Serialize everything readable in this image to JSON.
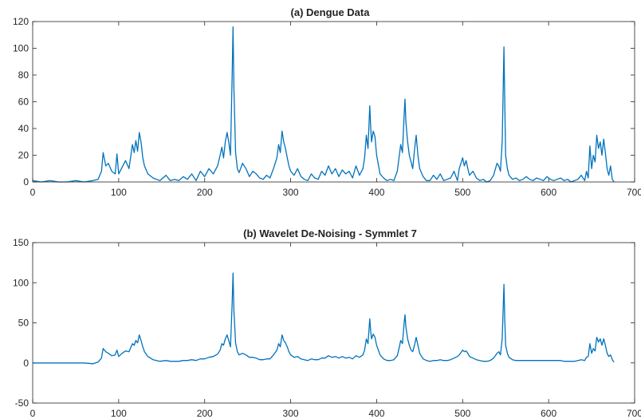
{
  "chart_data": [
    {
      "type": "line",
      "title": "(a) Dengue Data",
      "xlabel": "",
      "ylabel": "",
      "xlim": [
        0,
        700
      ],
      "ylim": [
        0,
        120
      ],
      "xticks": [
        0,
        100,
        200,
        300,
        400,
        500,
        600,
        700
      ],
      "yticks": [
        0,
        20,
        40,
        60,
        80,
        100,
        120
      ],
      "grid": false,
      "color": "#0072BD",
      "series": [
        {
          "x": [
            0,
            10,
            20,
            30,
            40,
            50,
            60,
            70,
            76,
            80,
            82,
            85,
            88,
            92,
            96,
            98,
            100,
            104,
            108,
            112,
            116,
            118,
            120,
            122,
            124,
            126,
            128,
            130,
            134,
            140,
            148,
            155,
            160,
            165,
            170,
            175,
            180,
            185,
            190,
            195,
            200,
            205,
            210,
            215,
            218,
            220,
            222,
            224,
            226,
            228,
            230,
            232,
            233,
            234,
            236,
            238,
            240,
            244,
            248,
            252,
            256,
            260,
            264,
            268,
            272,
            276,
            280,
            284,
            286,
            288,
            290,
            292,
            294,
            296,
            298,
            300,
            304,
            308,
            312,
            316,
            320,
            324,
            328,
            332,
            336,
            340,
            344,
            348,
            352,
            356,
            360,
            364,
            368,
            372,
            376,
            380,
            384,
            386,
            388,
            390,
            392,
            393,
            394,
            396,
            398,
            400,
            404,
            408,
            412,
            416,
            420,
            424,
            426,
            428,
            430,
            432,
            433,
            434,
            436,
            438,
            440,
            442,
            444,
            446,
            448,
            450,
            454,
            458,
            462,
            466,
            470,
            474,
            478,
            482,
            486,
            490,
            494,
            496,
            498,
            500,
            502,
            504,
            506,
            508,
            512,
            516,
            520,
            524,
            528,
            532,
            536,
            540,
            542,
            544,
            546,
            548,
            549,
            550,
            552,
            554,
            558,
            562,
            566,
            570,
            574,
            578,
            582,
            586,
            590,
            594,
            598,
            602,
            606,
            610,
            614,
            618,
            622,
            626,
            630,
            634,
            638,
            642,
            644,
            646,
            648,
            650,
            652,
            654,
            656,
            658,
            660,
            662,
            664,
            666,
            668,
            670,
            672,
            674,
            676
          ],
          "values": [
            1,
            0,
            1,
            0,
            0,
            1,
            0,
            1,
            2,
            8,
            22,
            12,
            14,
            8,
            6,
            21,
            6,
            11,
            16,
            10,
            28,
            22,
            31,
            23,
            37,
            30,
            18,
            12,
            6,
            3,
            1,
            5,
            1,
            2,
            1,
            4,
            2,
            6,
            1,
            8,
            4,
            10,
            6,
            12,
            20,
            26,
            18,
            30,
            37,
            30,
            20,
            80,
            116,
            70,
            22,
            10,
            7,
            14,
            10,
            4,
            8,
            6,
            3,
            2,
            5,
            3,
            10,
            18,
            28,
            22,
            38,
            30,
            25,
            18,
            12,
            8,
            5,
            10,
            4,
            2,
            1,
            6,
            3,
            2,
            8,
            5,
            12,
            6,
            10,
            4,
            9,
            6,
            8,
            3,
            12,
            5,
            10,
            18,
            35,
            25,
            57,
            42,
            30,
            38,
            34,
            20,
            6,
            3,
            1,
            2,
            1,
            8,
            18,
            28,
            22,
            50,
            62,
            45,
            30,
            20,
            15,
            10,
            24,
            35,
            20,
            10,
            4,
            1,
            1,
            5,
            2,
            6,
            1,
            2,
            3,
            8,
            1,
            10,
            14,
            18,
            12,
            16,
            10,
            5,
            8,
            3,
            1,
            2,
            0,
            1,
            5,
            14,
            12,
            8,
            30,
            101,
            60,
            20,
            10,
            5,
            2,
            3,
            1,
            2,
            4,
            2,
            1,
            3,
            2,
            1,
            4,
            2,
            1,
            2,
            3,
            1,
            2,
            0,
            1,
            2,
            5,
            1,
            8,
            3,
            27,
            10,
            20,
            15,
            35,
            25,
            30,
            20,
            32,
            22,
            10,
            5,
            12,
            2,
            0
          ]
        }
      ]
    },
    {
      "type": "line",
      "title": "(b) Wavelet De-Noising - Symmlet 7",
      "xlabel": "",
      "ylabel": "",
      "xlim": [
        0,
        700
      ],
      "ylim": [
        -50,
        150
      ],
      "xticks": [
        0,
        100,
        200,
        300,
        400,
        500,
        600,
        700
      ],
      "yticks": [
        -50,
        0,
        50,
        100,
        150
      ],
      "grid": false,
      "color": "#0072BD",
      "series": [
        {
          "x": [
            0,
            10,
            20,
            30,
            40,
            50,
            60,
            70,
            76,
            80,
            82,
            85,
            88,
            92,
            96,
            98,
            100,
            104,
            108,
            112,
            116,
            118,
            120,
            122,
            124,
            126,
            128,
            130,
            134,
            140,
            148,
            155,
            160,
            165,
            170,
            175,
            180,
            185,
            190,
            195,
            200,
            205,
            210,
            215,
            218,
            220,
            222,
            224,
            226,
            228,
            230,
            232,
            233,
            234,
            236,
            238,
            240,
            244,
            248,
            252,
            256,
            260,
            264,
            268,
            272,
            276,
            280,
            284,
            286,
            288,
            290,
            292,
            294,
            296,
            298,
            300,
            304,
            308,
            312,
            316,
            320,
            324,
            328,
            332,
            336,
            340,
            344,
            348,
            352,
            356,
            360,
            364,
            368,
            372,
            376,
            380,
            384,
            386,
            388,
            390,
            392,
            393,
            394,
            396,
            398,
            400,
            404,
            408,
            412,
            416,
            420,
            424,
            426,
            428,
            430,
            432,
            433,
            434,
            436,
            438,
            440,
            442,
            444,
            446,
            448,
            450,
            454,
            458,
            462,
            466,
            470,
            474,
            478,
            482,
            486,
            490,
            494,
            496,
            498,
            500,
            502,
            504,
            506,
            508,
            512,
            516,
            520,
            524,
            528,
            532,
            536,
            540,
            542,
            544,
            546,
            548,
            549,
            550,
            552,
            554,
            558,
            562,
            566,
            570,
            574,
            578,
            582,
            586,
            590,
            594,
            598,
            602,
            606,
            610,
            614,
            618,
            622,
            626,
            630,
            634,
            638,
            642,
            644,
            646,
            648,
            650,
            652,
            654,
            656,
            658,
            660,
            662,
            664,
            666,
            668,
            670,
            672,
            674,
            676
          ],
          "values": [
            0,
            0,
            0,
            0,
            0,
            0,
            0,
            -1,
            1,
            6,
            18,
            14,
            12,
            9,
            10,
            16,
            8,
            12,
            15,
            14,
            24,
            22,
            28,
            25,
            35,
            28,
            20,
            14,
            8,
            4,
            2,
            3,
            2,
            2,
            2,
            3,
            3,
            4,
            3,
            5,
            5,
            7,
            8,
            11,
            16,
            24,
            22,
            30,
            35,
            28,
            20,
            75,
            112,
            65,
            25,
            14,
            10,
            12,
            10,
            7,
            7,
            6,
            4,
            4,
            5,
            5,
            10,
            16,
            24,
            20,
            35,
            28,
            25,
            20,
            14,
            10,
            7,
            8,
            5,
            4,
            3,
            5,
            4,
            4,
            6,
            6,
            9,
            7,
            8,
            6,
            8,
            6,
            7,
            5,
            9,
            7,
            10,
            16,
            30,
            24,
            55,
            40,
            30,
            36,
            32,
            22,
            10,
            5,
            3,
            3,
            4,
            9,
            18,
            28,
            24,
            50,
            60,
            45,
            30,
            22,
            16,
            14,
            22,
            32,
            22,
            12,
            5,
            3,
            2,
            3,
            3,
            4,
            3,
            3,
            4,
            6,
            8,
            10,
            13,
            16,
            14,
            15,
            12,
            8,
            6,
            4,
            3,
            2,
            2,
            3,
            6,
            12,
            14,
            10,
            30,
            98,
            55,
            22,
            12,
            7,
            4,
            3,
            3,
            3,
            3,
            3,
            3,
            3,
            3,
            3,
            3,
            3,
            3,
            3,
            3,
            2,
            2,
            2,
            2,
            3,
            4,
            3,
            7,
            8,
            24,
            12,
            18,
            15,
            32,
            26,
            30,
            22,
            30,
            22,
            12,
            8,
            10,
            4,
            1
          ]
        }
      ]
    }
  ]
}
